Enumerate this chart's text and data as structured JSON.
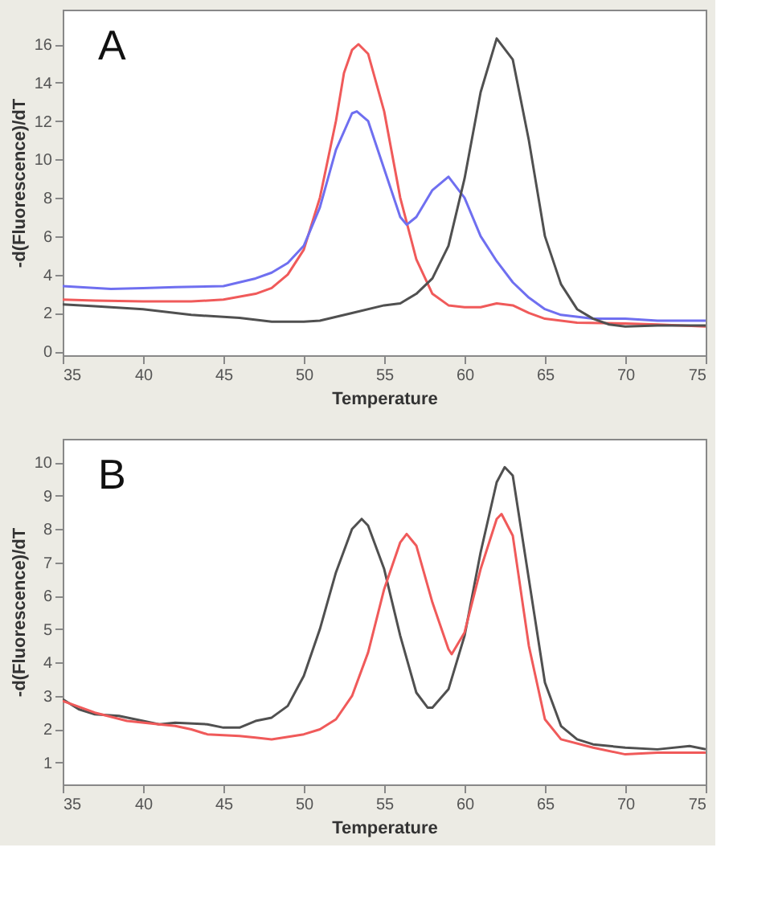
{
  "chart_data": [
    {
      "type": "line",
      "annotations": [
        "A"
      ],
      "xlabel": "Temperature",
      "ylabel": "-d(Fluorescence)/dT",
      "xlim": [
        35,
        75
      ],
      "xticks": [
        35,
        40,
        45,
        50,
        55,
        60,
        65,
        70,
        75
      ],
      "ylim": [
        -0.2,
        17.8
      ],
      "yticks": [
        0,
        2,
        4,
        6,
        8,
        10,
        12,
        14,
        16
      ],
      "grid": false,
      "legend": false,
      "line_style": "solid",
      "marker": "none",
      "series": [
        {
          "color": "#f05a5a",
          "x": [
            35,
            37,
            40,
            43,
            45,
            47,
            48,
            49,
            50,
            51,
            52,
            52.5,
            53,
            53.4,
            54,
            55,
            56,
            57,
            58,
            59,
            60,
            61,
            62,
            63,
            64,
            65,
            67,
            70,
            72,
            75
          ],
          "values": [
            2.7,
            2.65,
            2.6,
            2.6,
            2.7,
            3.0,
            3.3,
            4.0,
            5.3,
            8.0,
            12.0,
            14.5,
            15.7,
            16.0,
            15.5,
            12.5,
            8.0,
            4.8,
            3.0,
            2.4,
            2.3,
            2.3,
            2.5,
            2.4,
            2.0,
            1.7,
            1.5,
            1.45,
            1.4,
            1.3
          ]
        },
        {
          "color": "#6f6ff0",
          "x": [
            35,
            38,
            40,
            42,
            45,
            47,
            48,
            49,
            50,
            51,
            52,
            53,
            53.3,
            54,
            55,
            56,
            56.4,
            57,
            58,
            59,
            60,
            61,
            62,
            63,
            64,
            65,
            66,
            68,
            70,
            72,
            75
          ],
          "values": [
            3.4,
            3.25,
            3.3,
            3.35,
            3.4,
            3.8,
            4.1,
            4.6,
            5.5,
            7.5,
            10.5,
            12.4,
            12.5,
            12.0,
            9.5,
            7.0,
            6.6,
            7.0,
            8.4,
            9.1,
            8.0,
            6.0,
            4.7,
            3.6,
            2.8,
            2.2,
            1.9,
            1.7,
            1.7,
            1.6,
            1.6
          ]
        },
        {
          "color": "#505050",
          "x": [
            35,
            37,
            40,
            43,
            46,
            48,
            50,
            51,
            53,
            55,
            56,
            57,
            58,
            59,
            60,
            61,
            62,
            63,
            64,
            65,
            66,
            67,
            68,
            69,
            70,
            72,
            75
          ],
          "values": [
            2.45,
            2.35,
            2.2,
            1.9,
            1.75,
            1.55,
            1.55,
            1.6,
            2.0,
            2.4,
            2.5,
            3.0,
            3.8,
            5.5,
            9.0,
            13.5,
            16.3,
            15.2,
            11.0,
            6.0,
            3.5,
            2.2,
            1.7,
            1.4,
            1.3,
            1.35,
            1.35
          ]
        }
      ]
    },
    {
      "type": "line",
      "annotations": [
        "B"
      ],
      "xlabel": "Temperature",
      "ylabel": "-d(Fluorescence)/dT",
      "xlim": [
        35,
        75
      ],
      "xticks": [
        35,
        40,
        45,
        50,
        55,
        60,
        65,
        70,
        75
      ],
      "ylim": [
        0.35,
        10.7
      ],
      "yticks": [
        1,
        2,
        3,
        4,
        5,
        6,
        7,
        8,
        9,
        10
      ],
      "grid": false,
      "legend": false,
      "line_style": "solid",
      "marker": "none",
      "series": [
        {
          "color": "#505050",
          "x": [
            35,
            36,
            37,
            38.5,
            40,
            41,
            42,
            44,
            45,
            46,
            47,
            48,
            49,
            50,
            51,
            52,
            53,
            53.6,
            54,
            55,
            56,
            57,
            57.7,
            58,
            59,
            60,
            61,
            62,
            62.5,
            63,
            64,
            65,
            66,
            67,
            68,
            70,
            72,
            74,
            75
          ],
          "values": [
            2.9,
            2.6,
            2.45,
            2.4,
            2.25,
            2.15,
            2.2,
            2.15,
            2.05,
            2.05,
            2.25,
            2.35,
            2.7,
            3.6,
            5.0,
            6.7,
            8.0,
            8.3,
            8.1,
            6.8,
            4.8,
            3.1,
            2.65,
            2.65,
            3.2,
            4.8,
            7.3,
            9.4,
            9.85,
            9.6,
            6.5,
            3.4,
            2.1,
            1.7,
            1.55,
            1.45,
            1.4,
            1.5,
            1.4
          ]
        },
        {
          "color": "#f05a5a",
          "x": [
            35,
            37,
            39,
            41,
            42,
            43,
            44,
            46,
            47,
            48,
            50,
            51,
            52,
            53,
            54,
            55,
            56,
            56.4,
            57,
            58,
            59,
            59.2,
            60,
            61,
            62,
            62.3,
            63,
            64,
            65,
            66,
            68,
            70,
            72,
            75
          ],
          "values": [
            2.85,
            2.5,
            2.25,
            2.15,
            2.1,
            2.0,
            1.85,
            1.8,
            1.75,
            1.7,
            1.85,
            2.0,
            2.3,
            3.0,
            4.3,
            6.2,
            7.6,
            7.85,
            7.5,
            5.8,
            4.4,
            4.25,
            4.9,
            6.8,
            8.3,
            8.45,
            7.8,
            4.5,
            2.3,
            1.7,
            1.45,
            1.25,
            1.3,
            1.3
          ]
        }
      ]
    }
  ]
}
